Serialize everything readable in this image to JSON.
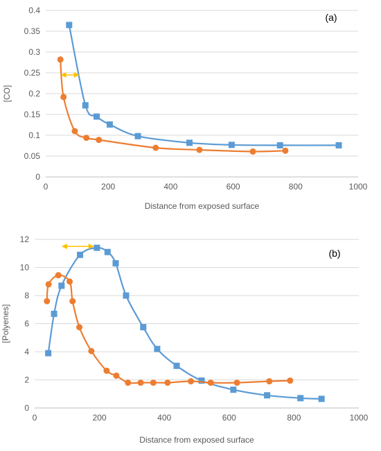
{
  "chart_data": [
    {
      "type": "scatter",
      "panel_label": "(a)",
      "title": "",
      "xlabel": "Distance from exposed surface",
      "ylabel": "[CO]",
      "xlim": [
        0,
        1000
      ],
      "ylim": [
        0,
        0.4
      ],
      "xticks": [
        "0",
        "200",
        "400",
        "600",
        "800",
        "1000"
      ],
      "yticks": [
        "0",
        "0.05",
        "0.1",
        "0.15",
        "0.2",
        "0.25",
        "0.3",
        "0.35",
        "0.4"
      ],
      "grid": "horizontal",
      "series": [
        {
          "color": "#5b9bd5",
          "marker": "square",
          "x": [
            75,
            127,
            163,
            205,
            295,
            460,
            595,
            750,
            938
          ],
          "y": [
            0.365,
            0.172,
            0.145,
            0.126,
            0.098,
            0.082,
            0.077,
            0.076,
            0.076
          ]
        },
        {
          "color": "#ed7d31",
          "marker": "circle",
          "x": [
            47,
            57,
            93,
            130,
            170,
            352,
            492,
            663,
            767
          ],
          "y": [
            0.282,
            0.192,
            0.11,
            0.094,
            0.089,
            0.07,
            0.065,
            0.061,
            0.063
          ]
        }
      ],
      "annotation": {
        "type": "double-arrow",
        "color": "#ffc000",
        "x": [
          48,
          108
        ],
        "y": 0.245
      }
    },
    {
      "type": "scatter",
      "panel_label": "(b)",
      "title": "",
      "xlabel": "Distance from exposed surface",
      "ylabel": "[Polyenes]",
      "xlim": [
        0,
        1000
      ],
      "ylim": [
        0,
        12
      ],
      "xticks": [
        "0",
        "200",
        "400",
        "600",
        "800",
        "1000"
      ],
      "yticks": [
        "0",
        "2",
        "4",
        "6",
        "8",
        "10",
        "12"
      ],
      "grid": "horizontal",
      "series": [
        {
          "color": "#5b9bd5",
          "marker": "square",
          "x": [
            42,
            60,
            83,
            140,
            192,
            225,
            250,
            282,
            335,
            378,
            438,
            515,
            613,
            717,
            820,
            885
          ],
          "y": [
            3.9,
            6.7,
            8.7,
            10.9,
            11.4,
            11.1,
            10.3,
            8.0,
            5.75,
            4.2,
            3.0,
            1.95,
            1.3,
            0.9,
            0.7,
            0.65
          ]
        },
        {
          "color": "#ed7d31",
          "marker": "circle",
          "x": [
            38,
            43,
            73,
            108,
            117,
            138,
            175,
            222,
            252,
            288,
            327,
            366,
            410,
            482,
            543,
            624,
            724,
            788
          ],
          "y": [
            7.6,
            8.8,
            9.45,
            9.0,
            7.6,
            5.75,
            4.05,
            2.65,
            2.3,
            1.8,
            1.8,
            1.8,
            1.8,
            1.9,
            1.8,
            1.8,
            1.9,
            1.95
          ]
        }
      ],
      "annotation": {
        "type": "double-arrow",
        "color": "#ffc000",
        "x": [
          83,
          183
        ],
        "y": 11.5
      }
    }
  ]
}
